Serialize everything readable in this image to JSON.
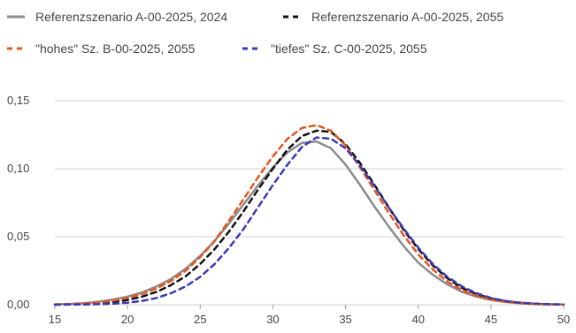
{
  "chart_data": {
    "type": "line",
    "title": "",
    "xlabel": "",
    "ylabel": "",
    "xlim": [
      15,
      50
    ],
    "ylim": [
      0,
      0.15
    ],
    "xticks": [
      "15",
      "20",
      "25",
      "30",
      "35",
      "40",
      "45",
      "50"
    ],
    "yticks": [
      "0,00",
      "0,05",
      "0,10",
      "0,15"
    ],
    "grid": "horizontal",
    "legend_position": "top",
    "x": [
      15,
      16,
      17,
      18,
      19,
      20,
      21,
      22,
      23,
      24,
      25,
      26,
      27,
      28,
      29,
      30,
      31,
      32,
      33,
      34,
      35,
      36,
      37,
      38,
      39,
      40,
      41,
      42,
      43,
      44,
      45,
      46,
      47,
      48,
      49,
      50
    ],
    "series": [
      {
        "name": "Referenzszenario A-00-2025, 2024",
        "color": "#8c8c8c",
        "dash": "solid",
        "values": [
          0.0003,
          0.0006,
          0.0012,
          0.0022,
          0.0038,
          0.006,
          0.009,
          0.0135,
          0.019,
          0.0265,
          0.036,
          0.047,
          0.06,
          0.074,
          0.088,
          0.101,
          0.112,
          0.119,
          0.12,
          0.115,
          0.103,
          0.088,
          0.072,
          0.057,
          0.043,
          0.031,
          0.022,
          0.015,
          0.0095,
          0.006,
          0.0035,
          0.002,
          0.0011,
          0.0006,
          0.0003,
          0.0001
        ]
      },
      {
        "name": "Referenzszenario A-00-2025, 2055",
        "color": "#111111",
        "dash": "dashed",
        "values": [
          0.0001,
          0.0002,
          0.0005,
          0.0011,
          0.002,
          0.0035,
          0.006,
          0.0095,
          0.0145,
          0.021,
          0.03,
          0.041,
          0.054,
          0.069,
          0.085,
          0.1,
          0.114,
          0.124,
          0.128,
          0.127,
          0.118,
          0.104,
          0.088,
          0.071,
          0.055,
          0.041,
          0.029,
          0.0195,
          0.0125,
          0.0078,
          0.0046,
          0.0026,
          0.0014,
          0.0007,
          0.0003,
          0.0001
        ]
      },
      {
        "name": "\"hohes\" Sz. B-00-2025, 2055",
        "color": "#e6561e",
        "dash": "dashed",
        "values": [
          0.0002,
          0.0005,
          0.001,
          0.0018,
          0.003,
          0.005,
          0.008,
          0.012,
          0.0175,
          0.025,
          0.035,
          0.047,
          0.062,
          0.078,
          0.094,
          0.109,
          0.122,
          0.13,
          0.132,
          0.128,
          0.117,
          0.101,
          0.084,
          0.067,
          0.051,
          0.037,
          0.026,
          0.017,
          0.0108,
          0.0066,
          0.0038,
          0.0021,
          0.0011,
          0.0005,
          0.0002,
          0.0001
        ]
      },
      {
        "name": "\"tiefes\" Sz. C-00-2025, 2055",
        "color": "#3a3ab8",
        "dash": "dashed",
        "values": [
          0.0,
          0.0001,
          0.0002,
          0.0004,
          0.0008,
          0.0015,
          0.0028,
          0.005,
          0.0085,
          0.0135,
          0.0205,
          0.03,
          0.042,
          0.056,
          0.072,
          0.088,
          0.103,
          0.116,
          0.123,
          0.122,
          0.115,
          0.102,
          0.087,
          0.071,
          0.056,
          0.042,
          0.03,
          0.0205,
          0.0135,
          0.0085,
          0.005,
          0.0028,
          0.0015,
          0.0008,
          0.0004,
          0.0002
        ]
      }
    ]
  }
}
